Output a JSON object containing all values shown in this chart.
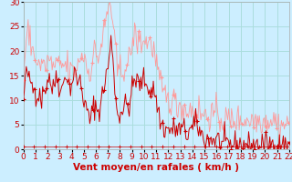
{
  "xlabel": "Vent moyen/en rafales ( km/h )",
  "bg_color": "#cceeff",
  "grid_color": "#aadddd",
  "xlim": [
    0,
    22
  ],
  "ylim": [
    0,
    30
  ],
  "xticks": [
    0,
    1,
    2,
    3,
    4,
    5,
    6,
    7,
    8,
    9,
    10,
    11,
    12,
    13,
    14,
    15,
    16,
    17,
    18,
    19,
    20,
    21,
    22
  ],
  "yticks": [
    0,
    5,
    10,
    15,
    20,
    25,
    30
  ],
  "avg_color": "#cc0000",
  "gust_color": "#ff9999",
  "label_fontsize": 7.5,
  "tick_fontsize": 6.5,
  "avg_wind": [
    9.5,
    12,
    14,
    15,
    16,
    15,
    14,
    13,
    14,
    13,
    12,
    13,
    12,
    11,
    12,
    11,
    11,
    12,
    11,
    10,
    11,
    12,
    12,
    13,
    13,
    14,
    15,
    15,
    14,
    13,
    12,
    12,
    13,
    14,
    15,
    15,
    14,
    13,
    13,
    12,
    12,
    13,
    14,
    15,
    16,
    15,
    14,
    13,
    13,
    13,
    13,
    14,
    15,
    16,
    15,
    14,
    14,
    14,
    14,
    14,
    13,
    12,
    11,
    10,
    9,
    8,
    8,
    7,
    7,
    6,
    6,
    7,
    8,
    9,
    9,
    9,
    8,
    8,
    8,
    8,
    9,
    10,
    11,
    12,
    13,
    14,
    15,
    16,
    17,
    18,
    20,
    22,
    21,
    19,
    16,
    13,
    10,
    8,
    7,
    7,
    7,
    8,
    8,
    8,
    8,
    9,
    9,
    9,
    9,
    8,
    9,
    10,
    11,
    12,
    13,
    14,
    14,
    14,
    14,
    14,
    13,
    13,
    13,
    14,
    14,
    14,
    14,
    14,
    13,
    13,
    13,
    12,
    12,
    12,
    12,
    12,
    12,
    11,
    10,
    9,
    8,
    7,
    6,
    5,
    5,
    5,
    4,
    4,
    4,
    4,
    4,
    4,
    4,
    4,
    4,
    4,
    4,
    4,
    4,
    4,
    4,
    4,
    4,
    4,
    4,
    4,
    4,
    4,
    4,
    3,
    3,
    3,
    4,
    4,
    4,
    4,
    4,
    5,
    5,
    5,
    5,
    5,
    4,
    4,
    3,
    3,
    3,
    2,
    2,
    2,
    2,
    2,
    2,
    2,
    2,
    2,
    2,
    2,
    2,
    2,
    2,
    2,
    2,
    2,
    2,
    1,
    1,
    1,
    1,
    1,
    1,
    1,
    1,
    1,
    1,
    1,
    1,
    1,
    1,
    1,
    1,
    1,
    1,
    1,
    1,
    1,
    1,
    1,
    1,
    1,
    1,
    1,
    1,
    1,
    1,
    1,
    1,
    1,
    1,
    1,
    1,
    1,
    1,
    1,
    1,
    1,
    1,
    1,
    1,
    1,
    1,
    1,
    1,
    1,
    1,
    1,
    1,
    1,
    1,
    1,
    1,
    1,
    1,
    1,
    1,
    1,
    1,
    1,
    1,
    1,
    1,
    1,
    1,
    1,
    1,
    1,
    1
  ],
  "gust_wind": [
    15,
    17,
    20,
    22,
    23,
    24,
    23,
    22,
    22,
    21,
    20,
    19,
    19,
    18,
    18,
    18,
    17,
    17,
    17,
    17,
    17,
    17,
    17,
    17,
    17,
    18,
    18,
    18,
    18,
    17,
    17,
    17,
    17,
    17,
    17,
    17,
    17,
    17,
    17,
    17,
    17,
    17,
    17,
    17,
    17,
    17,
    17,
    16,
    16,
    16,
    16,
    16,
    16,
    16,
    16,
    16,
    17,
    17,
    18,
    19,
    19,
    19,
    19,
    19,
    19,
    18,
    17,
    16,
    16,
    16,
    16,
    17,
    18,
    19,
    20,
    20,
    19,
    19,
    19,
    19,
    20,
    21,
    22,
    23,
    24,
    25,
    26,
    27,
    28,
    29,
    30,
    29,
    28,
    26,
    24,
    22,
    20,
    18,
    16,
    16,
    16,
    16,
    16,
    16,
    16,
    17,
    17,
    17,
    17,
    17,
    18,
    19,
    20,
    21,
    22,
    23,
    23,
    23,
    22,
    22,
    22,
    22,
    22,
    22,
    22,
    22,
    22,
    22,
    22,
    22,
    22,
    22,
    22,
    21,
    21,
    21,
    20,
    19,
    18,
    17,
    16,
    15,
    14,
    13,
    12,
    12,
    11,
    11,
    11,
    11,
    10,
    10,
    10,
    10,
    10,
    10,
    10,
    10,
    10,
    9,
    9,
    9,
    9,
    9,
    9,
    9,
    9,
    8,
    8,
    8,
    8,
    8,
    8,
    8,
    8,
    8,
    8,
    8,
    8,
    8,
    8,
    8,
    8,
    8,
    8,
    7,
    7,
    7,
    7,
    7,
    7,
    7,
    7,
    7,
    7,
    7,
    7,
    7,
    7,
    7,
    7,
    7,
    7,
    7,
    7,
    6,
    6,
    6,
    6,
    6,
    6,
    6,
    6,
    6,
    6,
    6,
    6,
    6,
    6,
    6,
    6,
    6,
    6,
    6,
    6,
    6,
    6,
    6,
    6,
    6,
    6,
    6,
    6,
    6,
    6,
    6,
    6,
    6,
    6,
    6,
    6,
    6,
    6,
    6,
    6,
    6,
    6,
    6,
    6,
    6,
    6,
    6,
    6,
    6,
    6,
    6,
    6,
    6,
    6,
    6,
    6,
    6,
    6,
    6,
    6,
    5,
    5,
    5,
    5,
    5,
    5,
    5,
    5,
    5,
    5,
    5,
    5,
    5
  ],
  "min_wind": [
    0.5,
    0.5,
    0.5,
    0.5,
    0.5,
    0.5,
    0.5,
    0.5,
    0.5,
    0.5,
    0.5,
    0.5,
    0.5,
    0.5,
    0.5,
    0.5,
    0.5,
    0.5,
    0.5,
    0.5,
    0.5,
    0.5,
    0.5,
    0.5,
    0.5,
    0.5,
    0.5,
    0.5,
    0.5,
    0.5,
    0.5,
    0.5,
    0.5,
    0.5,
    0.5,
    0.5,
    0.5,
    0.5,
    0.5,
    0.5,
    0.5,
    0.5,
    0.5,
    0.5,
    0.5,
    0.5,
    0.5,
    0.5,
    0.5,
    0.5,
    0.5,
    0.5,
    0.5,
    0.5,
    0.5,
    0.5,
    0.5,
    0.5,
    0.5,
    0.5,
    0.5,
    0.5,
    0.5,
    0.5,
    0.5,
    0.5,
    0.5,
    0.5,
    0.5,
    0.5,
    0.5,
    0.5,
    0.5,
    0.5,
    0.5,
    0.5,
    0.5,
    0.5,
    0.5,
    0.5,
    0.5,
    0.5,
    0.5,
    0.5,
    0.5,
    0.5,
    0.5,
    0.5,
    0.5,
    0.5,
    0.5,
    0.5,
    0.5,
    0.5,
    0.5,
    0.5,
    0.5,
    0.5,
    0.5,
    0.5,
    0.5,
    0.5,
    0.5,
    0.5,
    0.5,
    0.5,
    0.5,
    0.5,
    0.5,
    0.5,
    0.5,
    0.5,
    0.5,
    0.5,
    0.5,
    0.5,
    0.5,
    0.5,
    0.5,
    0.5,
    0.5,
    0.5,
    0.5,
    0.5,
    0.5,
    0.5,
    0.5,
    0.5,
    0.5,
    0.5,
    0.5,
    0.5,
    0.5,
    0.5,
    0.5,
    0.5,
    0.5,
    0.5,
    0.5,
    0.5,
    0.5,
    0.5,
    0.5,
    0.5,
    0.5,
    0.5,
    0.5,
    0.5,
    0.5,
    0.5,
    0.5,
    0.5,
    0.5,
    0.5,
    0.5,
    0.5,
    0.5,
    0.5,
    0.5,
    0.5,
    0.5,
    0.5,
    0.5,
    0.5,
    0.5,
    0.5,
    0.5,
    0.5,
    0.5,
    0.5,
    0.5,
    0.5,
    0.5,
    0.5,
    0.5,
    0.5,
    0.5,
    0.5,
    0.5,
    0.5,
    0.5,
    0.5,
    0.5,
    0.5,
    0.5,
    0.5,
    0.5,
    0.5,
    0.5,
    0.5,
    0.5,
    0.5,
    0.5,
    0.5,
    0.5,
    0.5,
    0.5,
    0.5,
    0.5,
    0.5,
    0.5,
    0.5,
    0.5,
    0.5,
    0.5,
    0.5,
    0.5,
    0.5,
    0.5,
    0.5,
    0.5,
    0.5,
    0.5,
    0.5,
    0.5,
    0.5,
    0.5,
    0.5,
    0.5,
    0.5,
    0.5,
    0.5,
    0.5,
    0.5,
    0.5,
    0.5,
    0.5,
    0.5,
    0.5,
    0.5,
    0.5,
    0.5,
    0.5,
    0.5,
    0.5,
    0.5,
    0.5,
    0.5,
    0.5,
    0.5,
    0.5,
    0.5,
    0.5,
    0.5,
    0.5,
    0.5,
    0.5,
    0.5,
    0.5,
    0.5,
    0.5,
    0.5,
    0.5,
    0.5,
    0.5,
    0.5,
    0.5,
    0.5,
    0.5,
    0.5,
    0.5,
    0.5,
    0.5,
    0.5,
    0.5,
    0.5,
    0.5,
    0.5,
    0.5,
    0.5,
    0.5,
    0.5,
    0.5,
    0.5
  ]
}
